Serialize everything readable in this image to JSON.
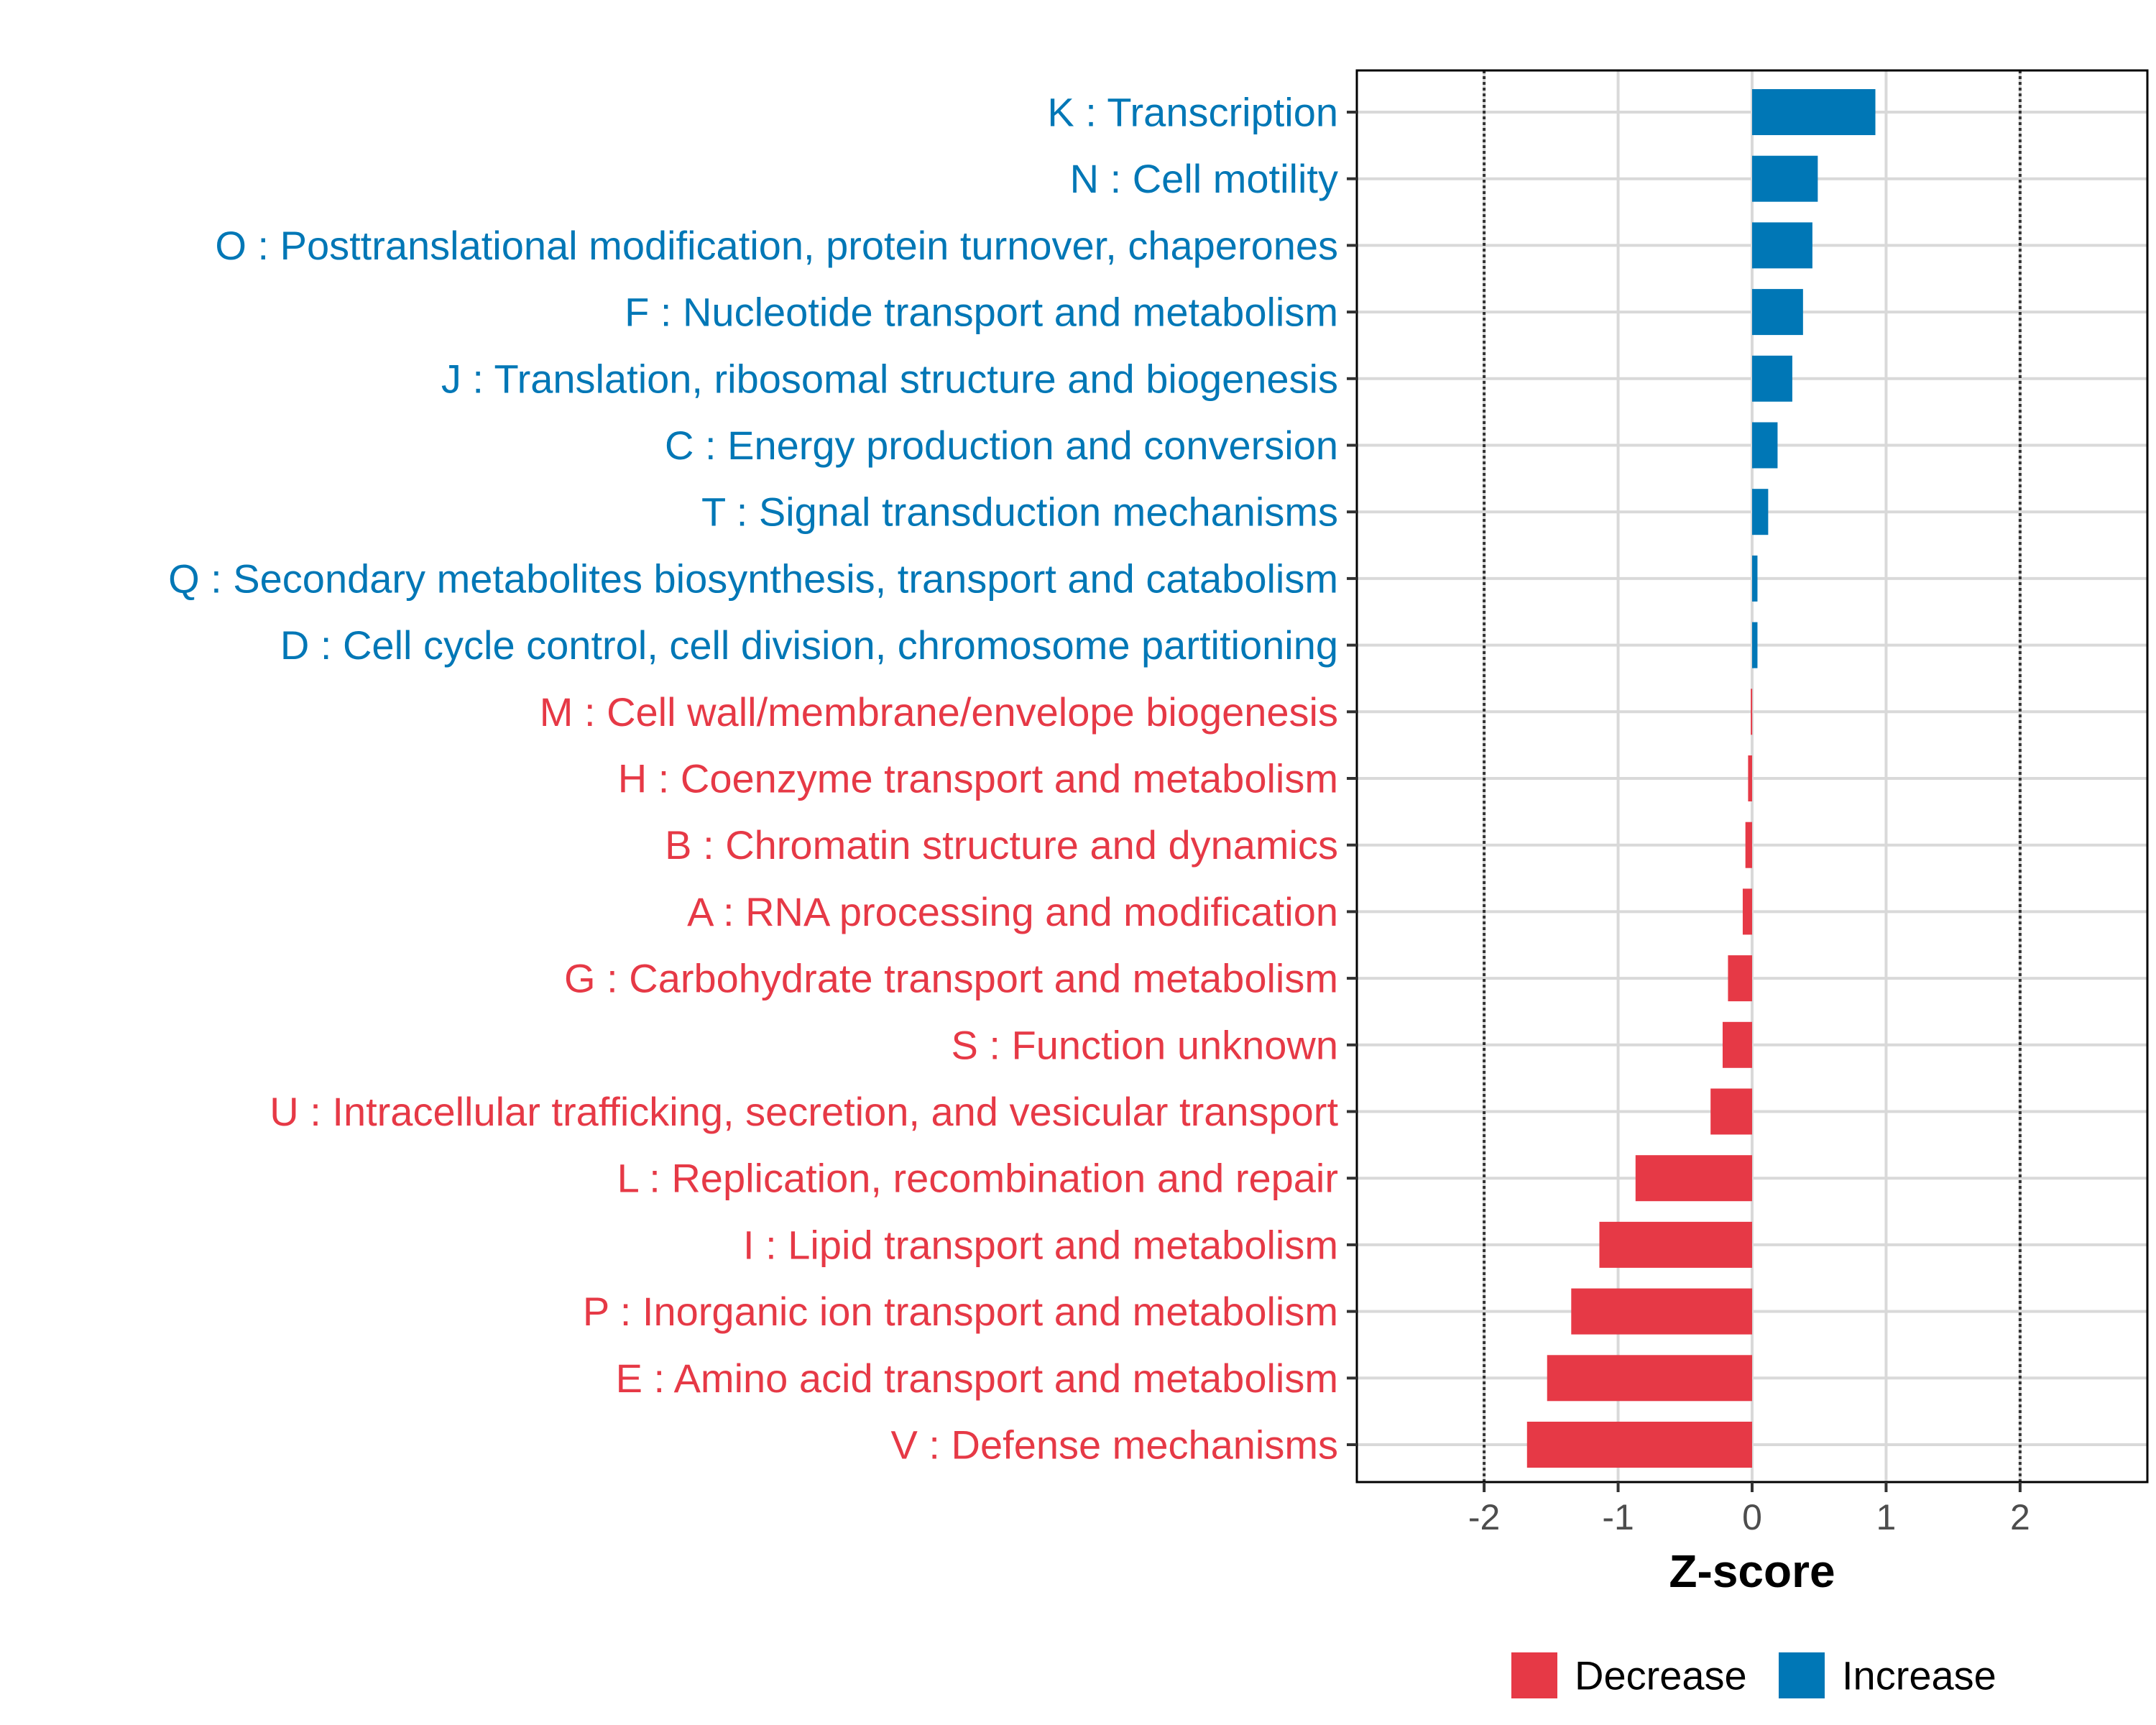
{
  "chart_data": {
    "type": "bar",
    "orientation": "horizontal",
    "xlabel": "Z-score",
    "xlim": [
      -2.95,
      2.95
    ],
    "xticks": [
      -2,
      -1,
      0,
      1,
      2
    ],
    "xtick_labels": [
      "-2",
      "-1",
      "0",
      "1",
      "2"
    ],
    "reference_lines": [
      -2,
      2
    ],
    "grid": true,
    "legend_position": "bottom",
    "colors": {
      "Decrease": "#e63946",
      "Increase": "#0077b6"
    },
    "legend": [
      {
        "label": "Decrease",
        "color": "#e63946"
      },
      {
        "label": "Increase",
        "color": "#0077b6"
      }
    ],
    "categories": [
      "K : Transcription",
      "N : Cell motility",
      "O : Posttranslational modification, protein turnover, chaperones",
      "F : Nucleotide transport and metabolism",
      "J : Translation, ribosomal structure and biogenesis",
      "C : Energy production and conversion",
      "T : Signal transduction mechanisms",
      "Q : Secondary metabolites biosynthesis, transport and catabolism",
      "D : Cell cycle control, cell division, chromosome partitioning",
      "M : Cell wall/membrane/envelope biogenesis",
      "H : Coenzyme transport and metabolism",
      "B : Chromatin structure and dynamics",
      "A : RNA processing and modification",
      "G : Carbohydrate transport and metabolism",
      "S : Function unknown",
      "U : Intracellular trafficking, secretion, and vesicular transport",
      "L : Replication, recombination and repair",
      "I : Lipid transport and metabolism",
      "P : Inorganic ion transport and metabolism",
      "E : Amino acid transport and metabolism",
      "V : Defense mechanisms"
    ],
    "values": [
      0.92,
      0.49,
      0.45,
      0.38,
      0.3,
      0.19,
      0.12,
      0.04,
      0.04,
      -0.01,
      -0.03,
      -0.05,
      -0.07,
      -0.18,
      -0.22,
      -0.31,
      -0.87,
      -1.14,
      -1.35,
      -1.53,
      -1.68
    ],
    "groups": [
      "Increase",
      "Increase",
      "Increase",
      "Increase",
      "Increase",
      "Increase",
      "Increase",
      "Increase",
      "Increase",
      "Decrease",
      "Decrease",
      "Decrease",
      "Decrease",
      "Decrease",
      "Decrease",
      "Decrease",
      "Decrease",
      "Decrease",
      "Decrease",
      "Decrease",
      "Decrease"
    ]
  }
}
